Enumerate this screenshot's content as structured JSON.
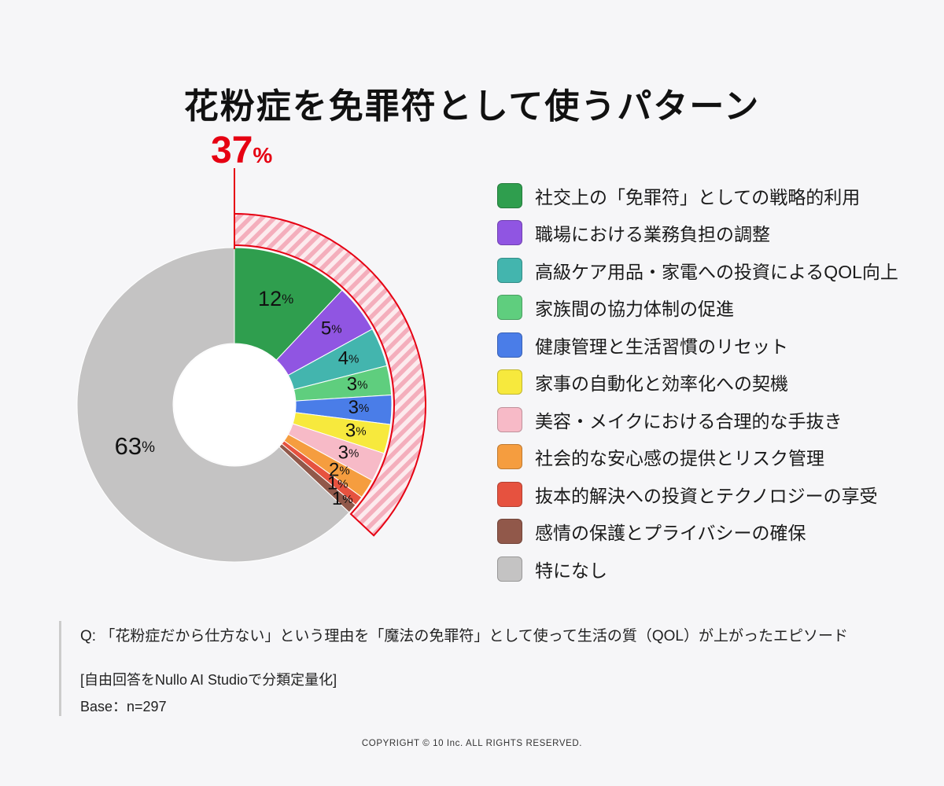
{
  "title": "花粉症を免罪符として使うパターン",
  "chart_data": {
    "type": "pie",
    "subtype": "donut",
    "unit": "%",
    "start_angle_deg": 0,
    "direction": "clockwise",
    "highlight": {
      "value": 37,
      "display": "37",
      "unit": "%"
    },
    "slices": [
      {
        "label": "社交上の「免罪符」としての戦略的利用",
        "value": 12,
        "color": "#2f9e4e",
        "label_r": 143
      },
      {
        "label": "職場における業務負担の調整",
        "value": 5,
        "color": "#9055e2",
        "label_r": 156
      },
      {
        "label": "高級ケア用品・家電への投資によるQOL向上",
        "value": 4,
        "color": "#43b5ae",
        "label_r": 156
      },
      {
        "label": "家族間の協力体制の促進",
        "value": 3,
        "color": "#5fce7e",
        "label_r": 158
      },
      {
        "label": "健康管理と生活習慣のリセット",
        "value": 3,
        "color": "#4a7de8",
        "label_r": 158
      },
      {
        "label": "家事の自動化と効率化への契機",
        "value": 3,
        "color": "#f7e93d",
        "label_r": 158
      },
      {
        "label": "美容・メイクにおける合理的な手抜き",
        "value": 3,
        "color": "#f7bac7",
        "label_r": 158
      },
      {
        "label": "社会的な安心感の提供とリスク管理",
        "value": 2,
        "color": "#f59d3f",
        "label_r": 158
      },
      {
        "label": "抜本的解決への投資とテクノロジーの享受",
        "value": 1,
        "color": "#e6523f",
        "label_r": 166
      },
      {
        "label": "感情の保護とプライバシーの確保",
        "value": 1,
        "color": "#91584a",
        "label_r": 183
      },
      {
        "label": "特になし",
        "value": 63,
        "color": "#c4c3c3",
        "label_r": 138
      }
    ],
    "colors": {
      "accent_red": "#e60012",
      "hatch_bg": "#fcebee",
      "hatch_stripe": "#f4aebc",
      "hole": "#ffffff"
    }
  },
  "footer": {
    "question": "Q: 「花粉症だから仕方ない」という理由を「魔法の免罪符」として使って生活の質（QOL）が上がったエピソード",
    "method": "[自由回答をNullo AI Studioで分類定量化]",
    "base": "Base：n=297"
  },
  "copyright": "COPYRIGHT © 10 Inc. ALL RIGHTS RESERVED."
}
